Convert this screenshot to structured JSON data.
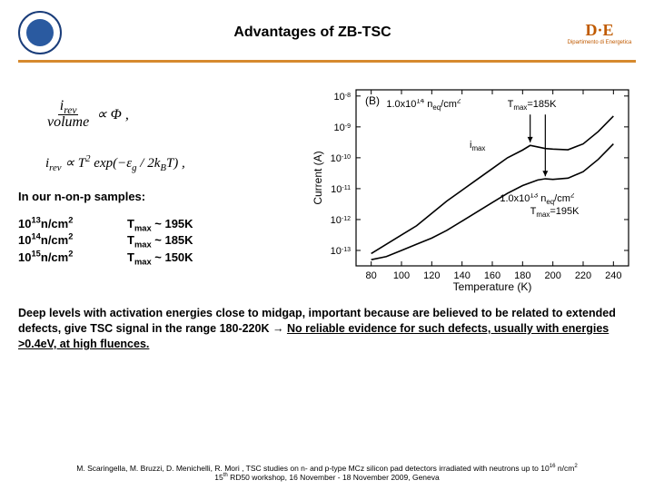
{
  "header": {
    "title": "Advantages of ZB-TSC",
    "logo_right_main": "D·E",
    "logo_right_sub": "Dipartimento di Energetica"
  },
  "formulas": {
    "f1_lhs_num": "i",
    "f1_lhs_num_sub": "rev",
    "f1_lhs_den": "volume",
    "f1_rel": "∝ Φ ,",
    "f2": "i<sub>rev</sub> ∝ T<sup>2</sup> exp(−ε<sub>g</sub> / 2k<sub>B</sub>T) ,"
  },
  "samples": {
    "heading": "In our  n-on-p samples:",
    "rows": [
      {
        "fluence_exp": "13",
        "tmax": "195K"
      },
      {
        "fluence_exp": "14",
        "tmax": "185K"
      },
      {
        "fluence_exp": "15",
        "tmax": "150K"
      }
    ],
    "fluence_unit_prefix": "10",
    "fluence_unit_suffix_html": "n/cm<sup>2</sup>",
    "tmax_label_html": "T<sub>max</sub> ~ "
  },
  "chart": {
    "type": "line",
    "panel_label": "(B)",
    "xlabel": "Temperature (K)",
    "ylabel": "Current (A)",
    "x_ticks": [
      80,
      100,
      120,
      140,
      160,
      180,
      200,
      220,
      240
    ],
    "xlim": [
      70,
      250
    ],
    "y_ticks_exp": [
      -13,
      -12,
      -11,
      -10,
      -9,
      -8
    ],
    "ylim_exp": [
      -13.5,
      -7.8
    ],
    "yscale": "log",
    "background_color": "#ffffff",
    "axis_color": "#000000",
    "tick_len": 5,
    "line_width": 1.6,
    "font_size_axis": 11,
    "font_size_anno": 11,
    "annotations": [
      {
        "text_html": "1.0x10<sup>14</sup> n<sub>eq</sub>/cm<sup>2</sup>",
        "x": 120,
        "y_exp": -8.4
      },
      {
        "text_html": "T<sub>max</sub>=185K",
        "x": 200,
        "y_exp": -8.4
      },
      {
        "text_html": "i<sub>max</sub>",
        "x": 175,
        "y_exp": -9.7
      },
      {
        "text_html": "1.0x10<sup>13</sup> n<sub>eq</sub>/cm<sup>2</sup>",
        "x": 195,
        "y_exp": -11.45
      },
      {
        "text_html": "T<sub>max</sub>=195K",
        "x": 215,
        "y_exp": -11.85
      }
    ],
    "arrows": [
      {
        "x": 185,
        "y1_exp": -8.6,
        "y2_exp": -9.5
      },
      {
        "x": 195,
        "y1_exp": -8.6,
        "y2_exp": -10.6
      }
    ],
    "series": [
      {
        "name": "1e14",
        "color": "#000000",
        "points": [
          {
            "x": 80,
            "y_exp": -13.1
          },
          {
            "x": 90,
            "y_exp": -12.8
          },
          {
            "x": 100,
            "y_exp": -12.5
          },
          {
            "x": 110,
            "y_exp": -12.2
          },
          {
            "x": 120,
            "y_exp": -11.8
          },
          {
            "x": 130,
            "y_exp": -11.4
          },
          {
            "x": 140,
            "y_exp": -11.05
          },
          {
            "x": 150,
            "y_exp": -10.7
          },
          {
            "x": 160,
            "y_exp": -10.35
          },
          {
            "x": 170,
            "y_exp": -10.0
          },
          {
            "x": 180,
            "y_exp": -9.75
          },
          {
            "x": 185,
            "y_exp": -9.6
          },
          {
            "x": 190,
            "y_exp": -9.65
          },
          {
            "x": 195,
            "y_exp": -9.7
          },
          {
            "x": 200,
            "y_exp": -9.72
          },
          {
            "x": 210,
            "y_exp": -9.74
          },
          {
            "x": 220,
            "y_exp": -9.55
          },
          {
            "x": 230,
            "y_exp": -9.15
          },
          {
            "x": 240,
            "y_exp": -8.65
          }
        ]
      },
      {
        "name": "1e13",
        "color": "#000000",
        "points": [
          {
            "x": 80,
            "y_exp": -13.3
          },
          {
            "x": 90,
            "y_exp": -13.2
          },
          {
            "x": 100,
            "y_exp": -13.0
          },
          {
            "x": 110,
            "y_exp": -12.8
          },
          {
            "x": 120,
            "y_exp": -12.6
          },
          {
            "x": 130,
            "y_exp": -12.35
          },
          {
            "x": 140,
            "y_exp": -12.05
          },
          {
            "x": 150,
            "y_exp": -11.75
          },
          {
            "x": 160,
            "y_exp": -11.45
          },
          {
            "x": 170,
            "y_exp": -11.15
          },
          {
            "x": 180,
            "y_exp": -10.9
          },
          {
            "x": 190,
            "y_exp": -10.72
          },
          {
            "x": 195,
            "y_exp": -10.68
          },
          {
            "x": 200,
            "y_exp": -10.7
          },
          {
            "x": 210,
            "y_exp": -10.66
          },
          {
            "x": 220,
            "y_exp": -10.45
          },
          {
            "x": 230,
            "y_exp": -10.05
          },
          {
            "x": 240,
            "y_exp": -9.55
          }
        ]
      }
    ]
  },
  "bottom": {
    "text_plain": "Deep levels with activation energies close to midgap, important because are believed to be related to extended defects, give TSC signal in the range 180-220K  → ",
    "text_underlined": "No reliable evidence for such defects, usually with energies  >0.4eV, at high fluences."
  },
  "footer": {
    "line1_html": "M. Scaringella, M. Bruzzi, D. Menichelli, R. Mori , TSC studies on n- and p-type MCz silicon pad detectors irradiated with neutrons up to 10<sup>16</sup> n/cm<sup>2</sup>",
    "line2_html": "15<sup>th</sup> RD50 workshop, 16 November - 18 November 2009, Geneva"
  }
}
